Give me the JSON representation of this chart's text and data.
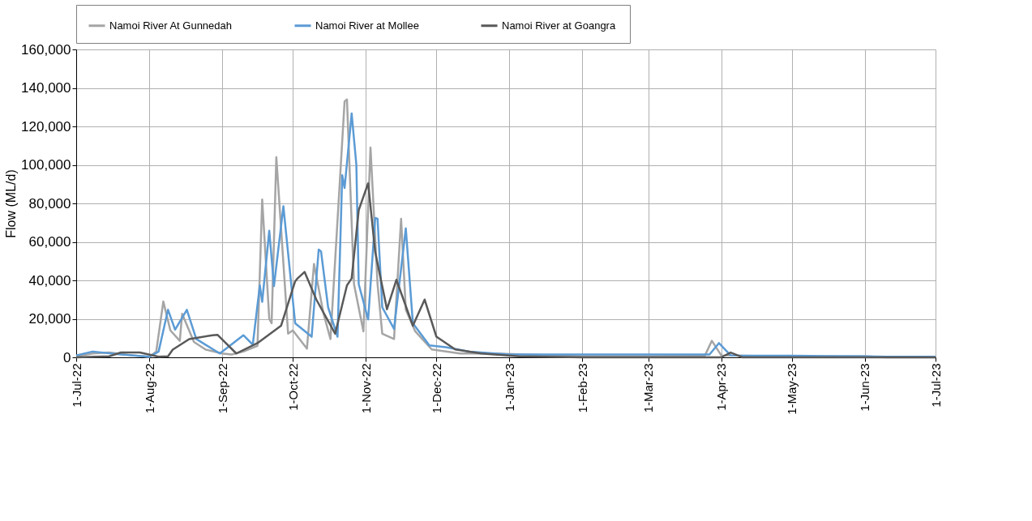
{
  "chart_data": {
    "type": "line",
    "ylabel": "Flow (ML/d)",
    "xlim": [
      "2022-07-01",
      "2023-07-01"
    ],
    "xticks": [
      {
        "value": "2022-07-01",
        "label": "1-Jul-22"
      },
      {
        "value": "2022-08-01",
        "label": "1-Aug-22"
      },
      {
        "value": "2022-09-01",
        "label": "1-Sep-22"
      },
      {
        "value": "2022-10-01",
        "label": "1-Oct-22"
      },
      {
        "value": "2022-11-01",
        "label": "1-Nov-22"
      },
      {
        "value": "2022-12-01",
        "label": "1-Dec-22"
      },
      {
        "value": "2023-01-01",
        "label": "1-Jan-23"
      },
      {
        "value": "2023-02-01",
        "label": "1-Feb-23"
      },
      {
        "value": "2023-03-01",
        "label": "1-Mar-23"
      },
      {
        "value": "2023-04-01",
        "label": "1-Apr-23"
      },
      {
        "value": "2023-05-01",
        "label": "1-May-23"
      },
      {
        "value": "2023-06-01",
        "label": "1-Jun-23"
      },
      {
        "value": "2023-07-01",
        "label": "1-Jul-23"
      }
    ],
    "ylim": [
      0,
      160000
    ],
    "yticks": [
      {
        "value": 0,
        "label": "0"
      },
      {
        "value": 20000,
        "label": "20,000"
      },
      {
        "value": 40000,
        "label": "40,000"
      },
      {
        "value": 60000,
        "label": "60,000"
      },
      {
        "value": 80000,
        "label": "80,000"
      },
      {
        "value": 100000,
        "label": "100,000"
      },
      {
        "value": 120000,
        "label": "120,000"
      },
      {
        "value": 140000,
        "label": "140,000"
      },
      {
        "value": 160000,
        "label": "160,000"
      }
    ],
    "grid": true,
    "legend": "top",
    "marker": "none",
    "line_style": "solid",
    "series": [
      {
        "name": "Namoi River At Gunnedah",
        "color": "#a5a5a5",
        "x": [
          "2022-07-01",
          "2022-07-08",
          "2022-07-15",
          "2022-07-25",
          "2022-08-01",
          "2022-08-04",
          "2022-08-07",
          "2022-08-10",
          "2022-08-14",
          "2022-08-15",
          "2022-08-20",
          "2022-08-25",
          "2022-09-01",
          "2022-09-05",
          "2022-09-10",
          "2022-09-16",
          "2022-09-18",
          "2022-09-21",
          "2022-09-22",
          "2022-09-24",
          "2022-09-29",
          "2022-10-01",
          "2022-10-07",
          "2022-10-10",
          "2022-10-14",
          "2022-10-17",
          "2022-10-23",
          "2022-10-24",
          "2022-10-27",
          "2022-10-31",
          "2022-11-03",
          "2022-11-06",
          "2022-11-08",
          "2022-11-13",
          "2022-11-16",
          "2022-11-18",
          "2022-11-22",
          "2022-11-29",
          "2022-12-11",
          "2022-12-25",
          "2023-02-01",
          "2023-03-01",
          "2023-03-25",
          "2023-03-28",
          "2023-04-01",
          "2023-05-01",
          "2023-06-01",
          "2023-06-10",
          "2023-07-01"
        ],
        "values": [
          500,
          2000,
          2500,
          1000,
          200,
          3000,
          29000,
          14000,
          8600,
          22600,
          8000,
          4000,
          2000,
          1500,
          3000,
          6000,
          82000,
          20000,
          17700,
          104000,
          12300,
          14000,
          4500,
          48500,
          23000,
          9500,
          133000,
          134000,
          38000,
          13500,
          109000,
          38000,
          12300,
          9500,
          72000,
          24700,
          13500,
          4100,
          2000,
          2000,
          500,
          500,
          800,
          8600,
          1000,
          500,
          500,
          0,
          0
        ]
      },
      {
        "name": "Namoi River at Mollee",
        "color": "#5b9bd5",
        "x": [
          "2022-07-01",
          "2022-07-08",
          "2022-07-20",
          "2022-08-01",
          "2022-08-05",
          "2022-08-09",
          "2022-08-12",
          "2022-08-17",
          "2022-08-21",
          "2022-08-31",
          "2022-09-10",
          "2022-09-14",
          "2022-09-17",
          "2022-09-18",
          "2022-09-21",
          "2022-09-23",
          "2022-09-27",
          "2022-10-02",
          "2022-10-09",
          "2022-10-12",
          "2022-10-13",
          "2022-10-16",
          "2022-10-20",
          "2022-10-22",
          "2022-10-23",
          "2022-10-26",
          "2022-10-28",
          "2022-10-29",
          "2022-11-02",
          "2022-11-05",
          "2022-11-06",
          "2022-11-08",
          "2022-11-13",
          "2022-11-18",
          "2022-11-21",
          "2022-11-28",
          "2022-12-05",
          "2022-12-15",
          "2023-01-01",
          "2023-02-01",
          "2023-03-01",
          "2023-03-27",
          "2023-03-31",
          "2023-04-05",
          "2023-05-01",
          "2023-06-01",
          "2023-06-10",
          "2023-07-01"
        ],
        "values": [
          1000,
          3000,
          1500,
          300,
          3000,
          24700,
          14400,
          24700,
          9500,
          2000,
          11500,
          6600,
          37400,
          28800,
          65800,
          37000,
          78500,
          17700,
          10700,
          56000,
          55000,
          26000,
          10700,
          94600,
          88000,
          126700,
          100000,
          38000,
          19700,
          72400,
          72000,
          26000,
          14800,
          67000,
          17700,
          6200,
          5300,
          3000,
          1500,
          1500,
          1500,
          1500,
          7400,
          1000,
          800,
          500,
          300,
          300
        ]
      },
      {
        "name": "Namoi  River at Goangra",
        "color": "#595959",
        "x": [
          "2022-07-01",
          "2022-07-15",
          "2022-07-20",
          "2022-07-28",
          "2022-08-05",
          "2022-08-09",
          "2022-08-11",
          "2022-08-18",
          "2022-08-28",
          "2022-08-30",
          "2022-09-07",
          "2022-09-16",
          "2022-09-26",
          "2022-10-02",
          "2022-10-03",
          "2022-10-06",
          "2022-10-11",
          "2022-10-19",
          "2022-10-24",
          "2022-10-26",
          "2022-10-29",
          "2022-11-02",
          "2022-11-05",
          "2022-11-10",
          "2022-11-14",
          "2022-11-21",
          "2022-11-26",
          "2022-12-01",
          "2022-12-09",
          "2022-12-20",
          "2023-01-05",
          "2023-02-01",
          "2023-03-01",
          "2023-04-01",
          "2023-04-05",
          "2023-04-10",
          "2023-05-01",
          "2023-07-01"
        ],
        "values": [
          0,
          500,
          2500,
          2500,
          300,
          500,
          4000,
          9500,
          11500,
          11700,
          2000,
          7400,
          16400,
          39500,
          41000,
          44400,
          30000,
          12300,
          37400,
          41000,
          76500,
          90500,
          54700,
          25000,
          40300,
          16400,
          30000,
          10700,
          4100,
          2000,
          500,
          0,
          0,
          0,
          2500,
          0,
          0,
          0
        ]
      }
    ]
  }
}
